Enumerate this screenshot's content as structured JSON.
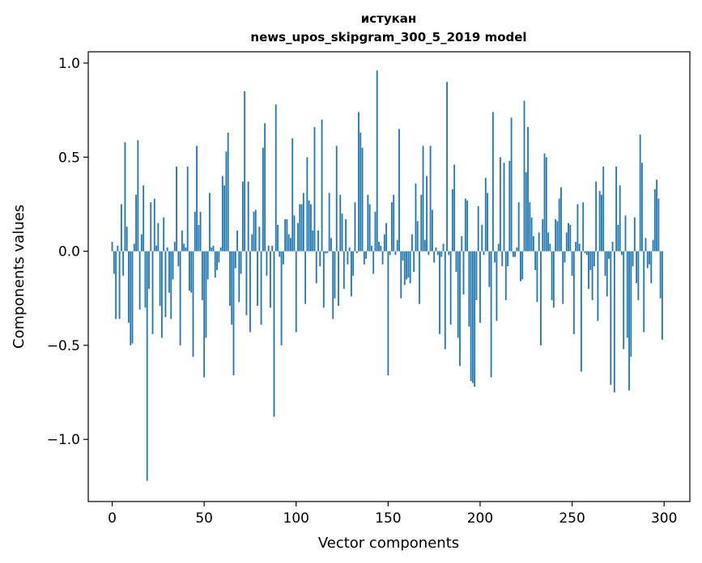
{
  "chart_data": {
    "type": "bar",
    "title_line1": "истукан",
    "title_line2": "news_upos_skipgram_300_5_2019 model",
    "xlabel": "Vector components",
    "ylabel": "Components values",
    "xlim": [
      -13,
      314
    ],
    "ylim": [
      -1.33,
      1.06
    ],
    "xticks": [
      0,
      50,
      100,
      150,
      200,
      250,
      300
    ],
    "xtick_labels": [
      "0",
      "50",
      "100",
      "150",
      "200",
      "250",
      "300"
    ],
    "yticks": [
      1.0,
      0.5,
      0.0,
      -0.5,
      -1.0
    ],
    "ytick_labels": [
      "1.0",
      "0.5",
      "0.0",
      "−0.5",
      "−1.0"
    ],
    "bar_color": "#1f77b4",
    "x_start": 0,
    "values": [
      0.05,
      -0.12,
      -0.36,
      0.03,
      -0.36,
      0.25,
      -0.13,
      0.58,
      0.13,
      -0.38,
      -0.5,
      -0.49,
      0.04,
      0.3,
      0.59,
      -0.31,
      0.09,
      0.35,
      -0.3,
      -1.22,
      -0.2,
      0.26,
      -0.44,
      0.28,
      0.03,
      0.15,
      -0.29,
      -0.46,
      0.18,
      -0.35,
      0.02,
      -0.22,
      -0.36,
      -0.15,
      0.05,
      0.45,
      -0.08,
      -0.5,
      0.11,
      0.04,
      0.02,
      0.45,
      -0.21,
      -0.22,
      -0.56,
      0.21,
      0.56,
      0.14,
      0.21,
      -0.26,
      -0.67,
      -0.46,
      -0.15,
      0.31,
      0.02,
      0.03,
      -0.14,
      -0.1,
      -0.06,
      0.02,
      0.4,
      0.35,
      0.53,
      0.63,
      -0.29,
      -0.39,
      -0.66,
      -0.09,
      0.11,
      -0.27,
      -0.12,
      0.37,
      0.85,
      -0.34,
      0.37,
      -0.43,
      0.09,
      0.21,
      0.22,
      -0.29,
      0.13,
      -0.39,
      0.55,
      0.68,
      -0.13,
      0.03,
      -0.3,
      0.03,
      -0.88,
      0.78,
      0.14,
      -0.03,
      -0.5,
      -0.07,
      0.17,
      0.17,
      0.09,
      0.07,
      0.6,
      0.19,
      -0.43,
      0.15,
      0.25,
      0.25,
      0.31,
      -0.28,
      0.5,
      0.27,
      0.25,
      0.11,
      0.66,
      -0.17,
      0.11,
      -0.08,
      0.7,
      -0.3,
      -0.01,
      -0.01,
      0.31,
      0.07,
      -0.36,
      -0.25,
      0.56,
      -0.29,
      0.3,
      0.2,
      -0.2,
      0.17,
      -0.07,
      0.02,
      -0.24,
      -0.13,
      0.26,
      -0.01,
      0.74,
      0.63,
      0.55,
      -0.07,
      -0.04,
      0.3,
      0.25,
      0.03,
      -0.12,
      0.21,
      0.96,
      0.05,
      0.03,
      -0.07,
      0.09,
      0.15,
      -0.66,
      -0.02,
      0.26,
      0.3,
      -0.02,
      0.06,
      0.65,
      -0.25,
      -0.05,
      -0.18,
      -0.15,
      -0.14,
      -0.17,
      0.09,
      -0.11,
      0.36,
      0.16,
      -0.28,
      0.3,
      0.56,
      0.06,
      0.4,
      -0.02,
      0.56,
      0.22,
      -0.06,
      0.02,
      -0.02,
      -0.44,
      -0.03,
      0.04,
      -0.52,
      0.9,
      -0.02,
      -0.39,
      0.33,
      0.46,
      -0.11,
      -0.46,
      -0.61,
      0.08,
      -0.23,
      0.28,
      0.27,
      -0.4,
      -0.69,
      -0.7,
      -0.72,
      -0.26,
      0.24,
      -0.38,
      0.14,
      -0.02,
      0.39,
      0.31,
      -0.19,
      -0.67,
      0.74,
      -0.06,
      -0.37,
      0.04,
      0.5,
      -0.08,
      0.47,
      -0.26,
      -0.08,
      0.48,
      0.71,
      -0.03,
      -0.03,
      0.02,
      0.26,
      -0.16,
      -0.15,
      0.8,
      0.42,
      0.66,
      0.26,
      0.18,
      0.08,
      -0.1,
      -0.27,
      0.1,
      -0.5,
      0.17,
      0.52,
      0.5,
      0.1,
      0.04,
      -0.26,
      -0.3,
      0.17,
      0.16,
      0.28,
      0.34,
      -0.28,
      -0.06,
      0.1,
      0.15,
      0.14,
      -0.13,
      -0.44,
      0.05,
      0.25,
      0.04,
      -0.64,
      0.26,
      -0.01,
      -0.02,
      -0.2,
      -0.1,
      -0.26,
      -0.08,
      0.37,
      -0.37,
      0.32,
      0.3,
      0.45,
      -0.13,
      -0.24,
      -0.04,
      -0.71,
      0.05,
      -0.75,
      0.45,
      0.14,
      0.35,
      -0.02,
      -0.52,
      0.19,
      -0.46,
      -0.74,
      -0.56,
      -0.08,
      0.18,
      -0.17,
      -0.26,
      0.62,
      0.47,
      -0.43,
      0.07,
      -0.09,
      -0.07,
      -0.17,
      0.06,
      0.33,
      0.38,
      0.28,
      -0.25,
      -0.47
    ]
  }
}
